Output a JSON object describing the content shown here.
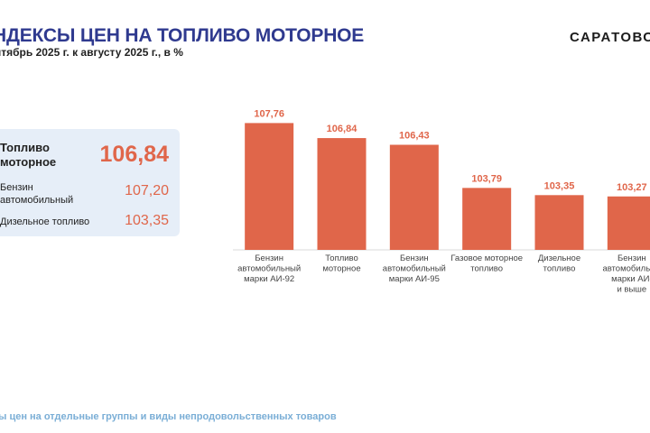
{
  "header": {
    "title": "НДЕКСЫ ЦЕН НА ТОПЛИВО МОТОРНОЕ",
    "subtitle": "нтябрь 2025 г. к августу 2025 г., в %",
    "brand": "САРАТОВС"
  },
  "summary_card": {
    "main": {
      "label": "Топливо моторное",
      "value": "106,84"
    },
    "rows": [
      {
        "label": "Бензин автомобильный",
        "value": "107,20"
      },
      {
        "label": "Дизельное топливо",
        "value": "103,35"
      }
    ]
  },
  "colors": {
    "bar": "#e0664a",
    "accent_value": "#e0664a",
    "title": "#2f3a8f",
    "card_bg": "#e6eef8",
    "footer": "#7aaed6"
  },
  "chart_data": {
    "type": "bar",
    "title": "",
    "xlabel": "",
    "ylabel": "",
    "ylim": [
      100,
      108.5
    ],
    "grid": false,
    "categories": [
      [
        "Бензин",
        "автомобильный",
        "марки АИ-92"
      ],
      [
        "Топливо",
        "моторное"
      ],
      [
        "Бензин",
        "автомобильный",
        "марки АИ-95"
      ],
      [
        "Газовое моторное",
        "топливо"
      ],
      [
        "Дизельное",
        "топливо"
      ],
      [
        "Бензин",
        "автомобильны",
        "марки АИ-",
        "и выше"
      ]
    ],
    "values": [
      107.76,
      106.84,
      106.43,
      103.79,
      103.35,
      103.27
    ],
    "value_labels": [
      "107,76",
      "106,84",
      "106,43",
      "103,79",
      "103,35",
      "103,27"
    ]
  },
  "footer": {
    "text": "ы цен на отдельные группы и виды непродовольственных товаров"
  }
}
